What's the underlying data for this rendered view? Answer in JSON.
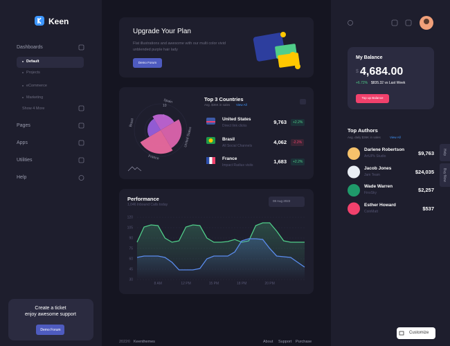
{
  "sidebar": {
    "brand": "Keen",
    "section": "Dashboards",
    "items": [
      "Default",
      "Projects",
      "eCommerce",
      "Marketing",
      "Show 4 More"
    ],
    "menu": [
      "Pages",
      "Apps",
      "Utilities",
      "Help"
    ],
    "ticket": {
      "title": "Create a ticket",
      "text": "enjoy awesome support",
      "button": "Demo Forum"
    }
  },
  "upgrade": {
    "title": "Upgrade Your Plan",
    "text": "Flat illustrations and awesome with our multi color vivid unblended purple hair lady",
    "button": "Demo Forum"
  },
  "countries": {
    "title": "Top 3 Countries",
    "subtitle": "Avg. $36K in sales",
    "link": "View All",
    "rows": [
      {
        "name": "United States",
        "desc": "Direct link clicks",
        "value": "9,763",
        "change": "+2.2%"
      },
      {
        "name": "Brasil",
        "desc": "All Social Channels",
        "value": "4,062",
        "change": "-2.2%"
      },
      {
        "name": "France",
        "desc": "Impact Radius visits",
        "value": "1,683",
        "change": "+2.2%"
      }
    ]
  },
  "chart_data": [
    {
      "type": "polar",
      "categories": [
        "Spain",
        "United States",
        "France",
        "Brasil"
      ],
      "values": [
        6,
        8,
        9,
        5
      ],
      "colors": [
        "#c767dc",
        "#e667b4",
        "#f46ea5",
        "#9e62e6"
      ],
      "rlim": [
        0,
        10
      ],
      "rticks": [
        6,
        10
      ]
    },
    {
      "type": "area",
      "title": "Performance",
      "subtitle": "1,046 Inbound Calls today",
      "date": "08 Aug 2022",
      "categories": [
        null,
        null,
        null,
        "8 AM",
        null,
        null,
        null,
        "12 PM",
        null,
        null,
        null,
        "15 PM",
        null,
        null,
        null,
        "18 PM",
        null,
        null,
        null,
        "20 PM",
        null,
        null,
        null,
        null,
        null
      ],
      "series": [
        {
          "color": "#50cd89",
          "values": [
            84,
            106,
            109,
            108,
            90,
            84,
            86,
            106,
            109,
            108,
            90,
            84,
            84,
            85,
            88,
            84,
            86,
            108,
            112,
            112,
            100,
            86,
            84,
            84,
            84
          ]
        },
        {
          "color": "#5b8def",
          "values": [
            62,
            64,
            64,
            64,
            62,
            55,
            44,
            44,
            44,
            46,
            60,
            64,
            64,
            64,
            70,
            86,
            89,
            89,
            88,
            75,
            64,
            63,
            62,
            55,
            48
          ]
        }
      ],
      "ylim": [
        30,
        120
      ],
      "yticks": [
        30,
        45,
        60,
        75,
        90,
        105,
        120
      ],
      "grid": true
    }
  ],
  "balance": {
    "title": "My Balance",
    "currency": "$",
    "amount": "4,684.00",
    "change": "+6.72%",
    "compare": "$835.32 vs Last Week",
    "button": "Top up Balance"
  },
  "authors": {
    "title": "Top Authors",
    "subtitle": "Avg. daily $36K in sales",
    "link": "View All",
    "rows": [
      {
        "name": "Darlene Robertson",
        "company": "ArtUPk Studio",
        "amount": "$9,763"
      },
      {
        "name": "Jacob Jones",
        "company": "Jam Team",
        "amount": "$24,035"
      },
      {
        "name": "Wade Warren",
        "company": "FinoSky",
        "amount": "$2,257"
      },
      {
        "name": "Esther Howard",
        "company": "CoinMatt",
        "amount": "$537"
      }
    ]
  },
  "side_tabs": [
    "Help",
    "Buy Now"
  ],
  "customize": "Customize",
  "footer": {
    "year": "2022©",
    "brand": "Keenthemes",
    "links": [
      "About",
      "Support",
      "Purchase"
    ]
  }
}
